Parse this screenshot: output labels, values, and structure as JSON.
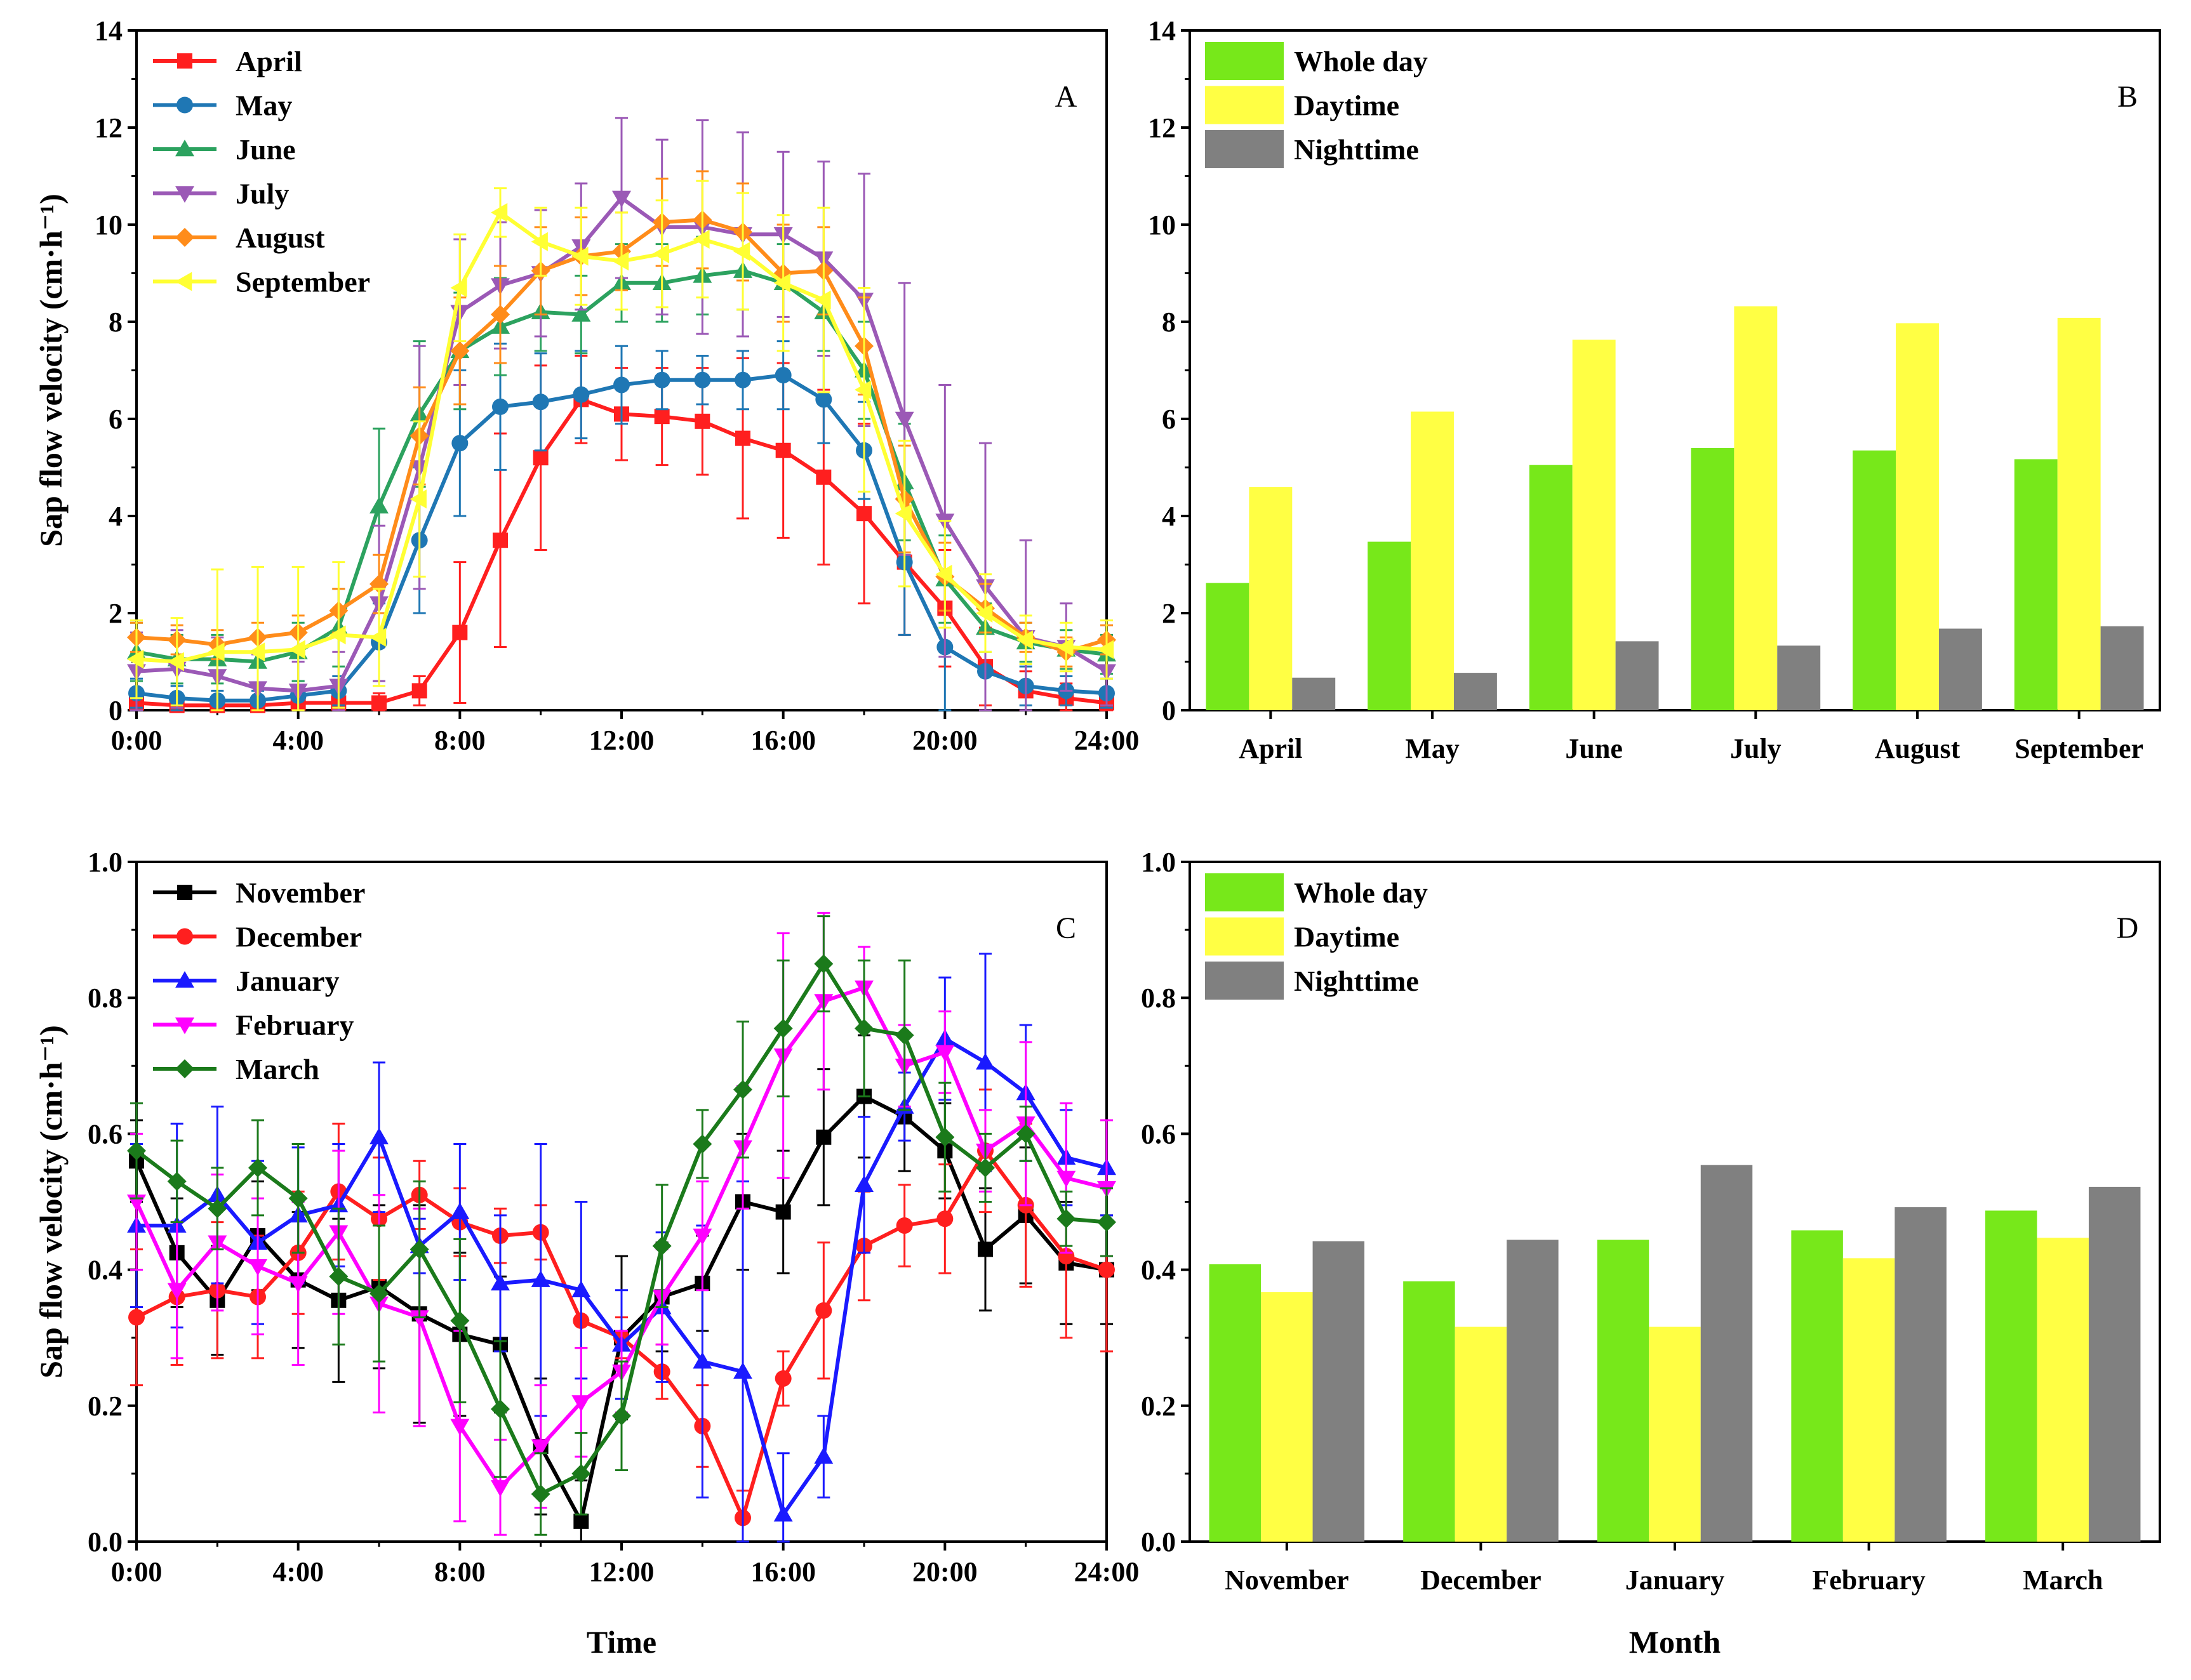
{
  "colors": {
    "April": "#ff1f1f",
    "May": "#1f77b4",
    "June": "#2ca25f",
    "July": "#9b59b6",
    "August": "#ff8c1a",
    "September": "#ffff33",
    "November": "#000000",
    "December": "#ff1f1f",
    "January": "#1a1aff",
    "February": "#ff00ff",
    "March": "#1b7a1b",
    "Whole day": "#77e81a",
    "Daytime": "#ffff44",
    "Nighttime": "#808080"
  },
  "chart_data": [
    {
      "panel": "A",
      "type": "line",
      "xlabel": "",
      "ylabel": "Sap flow velocity (cm·h⁻¹)",
      "ylim": [
        0,
        14
      ],
      "yticks": [
        "0",
        "2",
        "4",
        "6",
        "8",
        "10",
        "12",
        "14"
      ],
      "xlim": [
        0,
        24
      ],
      "xticks": [
        "0:00",
        "4:00",
        "8:00",
        "12:00",
        "16:00",
        "20:00",
        "24:00"
      ],
      "x": [
        0,
        1,
        2,
        3,
        4,
        5,
        6,
        7,
        8,
        9,
        10,
        11,
        12,
        13,
        14,
        15,
        16,
        17,
        18,
        19,
        20,
        21,
        22,
        23,
        24
      ],
      "series": [
        {
          "name": "April",
          "marker": "square",
          "values": [
            0.15,
            0.1,
            0.1,
            0.1,
            0.15,
            0.15,
            0.15,
            0.4,
            1.6,
            3.5,
            5.2,
            6.4,
            6.1,
            6.05,
            5.95,
            5.6,
            5.35,
            4.8,
            4.05,
            3.05,
            2.1,
            0.9,
            0.4,
            0.25,
            0.15
          ],
          "errors": [
            0.2,
            0.15,
            0.15,
            0.15,
            0.2,
            0.2,
            0.2,
            0.3,
            1.45,
            2.2,
            1.9,
            0.9,
            0.95,
            1.0,
            1.1,
            1.65,
            1.8,
            1.8,
            1.85,
            1.5,
            1.2,
            0.8,
            0.4,
            0.3,
            0.2
          ]
        },
        {
          "name": "May",
          "marker": "circle",
          "values": [
            0.35,
            0.25,
            0.2,
            0.2,
            0.3,
            0.4,
            1.4,
            3.5,
            5.5,
            6.25,
            6.35,
            6.5,
            6.7,
            6.8,
            6.8,
            6.8,
            6.9,
            6.4,
            5.35,
            3.05,
            1.3,
            0.8,
            0.5,
            0.4,
            0.35
          ],
          "errors": [
            0.3,
            0.25,
            0.2,
            0.2,
            0.3,
            0.3,
            0.8,
            1.5,
            1.5,
            1.3,
            1.0,
            0.9,
            0.8,
            0.6,
            0.5,
            0.6,
            0.7,
            0.9,
            1.0,
            1.5,
            1.3,
            0.8,
            0.4,
            0.3,
            0.3
          ]
        },
        {
          "name": "June",
          "marker": "triangle-up",
          "values": [
            1.2,
            1.05,
            1.05,
            1.0,
            1.2,
            1.7,
            4.2,
            6.1,
            7.4,
            7.9,
            8.2,
            8.15,
            8.8,
            8.8,
            8.95,
            9.05,
            8.8,
            8.2,
            7.0,
            4.7,
            2.7,
            1.7,
            1.4,
            1.25,
            1.15
          ],
          "errors": [
            0.6,
            0.5,
            0.5,
            0.5,
            0.6,
            0.8,
            1.6,
            1.5,
            1.2,
            1.0,
            0.8,
            0.8,
            0.8,
            0.8,
            0.8,
            0.8,
            0.8,
            0.8,
            1.0,
            1.2,
            0.9,
            0.5,
            0.4,
            0.4,
            0.4
          ]
        },
        {
          "name": "July",
          "marker": "triangle-down",
          "values": [
            0.8,
            0.85,
            0.7,
            0.45,
            0.4,
            0.5,
            2.2,
            5.0,
            8.2,
            8.75,
            9.0,
            9.55,
            10.55,
            9.95,
            9.95,
            9.8,
            9.8,
            9.3,
            8.45,
            6.0,
            3.9,
            2.55,
            1.5,
            1.3,
            0.8
          ],
          "errors": [
            0.8,
            0.8,
            0.8,
            0.7,
            0.6,
            0.7,
            1.6,
            2.5,
            1.5,
            1.3,
            1.3,
            1.3,
            1.65,
            1.8,
            2.2,
            2.1,
            1.7,
            2.0,
            2.6,
            2.8,
            2.8,
            2.95,
            2.0,
            0.9,
            0.7
          ]
        },
        {
          "name": "August",
          "marker": "diamond",
          "values": [
            1.5,
            1.45,
            1.35,
            1.5,
            1.6,
            2.05,
            2.6,
            5.65,
            7.4,
            8.15,
            9.05,
            9.35,
            9.45,
            10.05,
            10.1,
            9.85,
            9.0,
            9.05,
            7.5,
            4.35,
            2.75,
            2.1,
            1.5,
            1.2,
            1.45
          ],
          "errors": [
            0.3,
            0.3,
            0.3,
            0.3,
            0.35,
            0.45,
            0.6,
            1.0,
            1.1,
            1.0,
            0.9,
            0.8,
            0.8,
            0.9,
            1.0,
            1.0,
            1.0,
            0.9,
            1.0,
            1.1,
            0.7,
            0.5,
            0.3,
            0.3,
            0.3
          ]
        },
        {
          "name": "September",
          "marker": "triangle-left",
          "values": [
            1.05,
            1.0,
            1.2,
            1.2,
            1.25,
            1.55,
            1.5,
            4.35,
            8.7,
            10.25,
            9.65,
            9.35,
            9.25,
            9.4,
            9.7,
            9.45,
            8.8,
            8.45,
            6.6,
            4.05,
            2.8,
            2.0,
            1.45,
            1.3,
            1.25
          ],
          "errors": [
            0.8,
            0.9,
            1.7,
            1.75,
            1.7,
            1.5,
            1.0,
            1.6,
            1.1,
            0.5,
            0.7,
            1.0,
            1.0,
            1.1,
            1.2,
            1.2,
            1.4,
            1.9,
            2.1,
            1.5,
            1.1,
            0.8,
            0.5,
            0.5,
            0.6
          ]
        }
      ]
    },
    {
      "panel": "B",
      "type": "bar",
      "xlabel": "",
      "ylabel": "",
      "ylim": [
        0,
        14
      ],
      "yticks": [
        "0",
        "2",
        "4",
        "6",
        "8",
        "10",
        "12",
        "14"
      ],
      "categories": [
        "April",
        "May",
        "June",
        "July",
        "August",
        "September"
      ],
      "series": [
        {
          "name": "Whole day",
          "values": [
            2.62,
            3.47,
            5.05,
            5.4,
            5.35,
            5.17
          ]
        },
        {
          "name": "Daytime",
          "values": [
            4.6,
            6.15,
            7.63,
            8.32,
            7.97,
            8.08
          ]
        },
        {
          "name": "Nighttime",
          "values": [
            0.67,
            0.77,
            1.42,
            1.33,
            1.68,
            1.73
          ]
        }
      ]
    },
    {
      "panel": "C",
      "type": "line",
      "xlabel": "Time",
      "ylabel": "Sap flow velocity (cm·h⁻¹)",
      "ylim": [
        0,
        1.0
      ],
      "yticks": [
        "0.0",
        "0.2",
        "0.4",
        "0.6",
        "0.8",
        "1.0"
      ],
      "xlim": [
        0,
        24
      ],
      "xticks": [
        "0:00",
        "4:00",
        "8:00",
        "12:00",
        "16:00",
        "20:00",
        "24:00"
      ],
      "x": [
        0,
        1,
        2,
        3,
        4,
        5,
        6,
        7,
        8,
        9,
        10,
        11,
        12,
        13,
        14,
        15,
        16,
        17,
        18,
        19,
        20,
        21,
        22,
        23,
        24
      ],
      "series": [
        {
          "name": "November",
          "marker": "square",
          "values": [
            0.56,
            0.425,
            0.355,
            0.45,
            0.385,
            0.355,
            0.375,
            0.335,
            0.305,
            0.29,
            0.14,
            0.03,
            0.3,
            0.36,
            0.38,
            0.5,
            0.485,
            0.595,
            0.655,
            0.625,
            0.575,
            0.43,
            0.48,
            0.41,
            0.4
          ],
          "errors": [
            0.06,
            0.08,
            0.08,
            0.08,
            0.1,
            0.12,
            0.12,
            0.16,
            0.12,
            0.1,
            0.1,
            0.06,
            0.12,
            0.08,
            0.07,
            0.1,
            0.09,
            0.1,
            0.09,
            0.08,
            0.07,
            0.09,
            0.1,
            0.09,
            0.08
          ]
        },
        {
          "name": "December",
          "marker": "circle",
          "values": [
            0.33,
            0.36,
            0.37,
            0.36,
            0.425,
            0.515,
            0.475,
            0.51,
            0.47,
            0.45,
            0.455,
            0.325,
            0.3,
            0.25,
            0.17,
            0.035,
            0.24,
            0.34,
            0.435,
            0.465,
            0.475,
            0.575,
            0.495,
            0.42,
            0.4
          ],
          "errors": [
            0.1,
            0.1,
            0.1,
            0.09,
            0.09,
            0.1,
            0.09,
            0.05,
            0.05,
            0.04,
            0.04,
            0.04,
            0.03,
            0.04,
            0.06,
            0.04,
            0.04,
            0.1,
            0.08,
            0.06,
            0.08,
            0.09,
            0.12,
            0.12,
            0.12
          ]
        },
        {
          "name": "January",
          "marker": "triangle-up",
          "values": [
            0.465,
            0.465,
            0.51,
            0.44,
            0.48,
            0.495,
            0.595,
            0.435,
            0.485,
            0.38,
            0.385,
            0.37,
            0.29,
            0.345,
            0.265,
            0.25,
            0.04,
            0.125,
            0.525,
            0.64,
            0.74,
            0.705,
            0.66,
            0.565,
            0.55
          ],
          "errors": [
            0.12,
            0.15,
            0.13,
            0.12,
            0.1,
            0.09,
            0.11,
            0.04,
            0.1,
            0.1,
            0.2,
            0.13,
            0.08,
            0.11,
            0.2,
            0.28,
            0.09,
            0.06,
            0.1,
            0.05,
            0.09,
            0.16,
            0.1,
            0.07,
            0.07
          ]
        },
        {
          "name": "February",
          "marker": "triangle-down",
          "values": [
            0.5,
            0.37,
            0.44,
            0.405,
            0.38,
            0.455,
            0.35,
            0.33,
            0.17,
            0.08,
            0.14,
            0.205,
            0.25,
            0.36,
            0.45,
            0.58,
            0.715,
            0.795,
            0.815,
            0.7,
            0.72,
            0.575,
            0.615,
            0.535,
            0.52
          ],
          "errors": [
            0.1,
            0.1,
            0.1,
            0.1,
            0.12,
            0.12,
            0.16,
            0.16,
            0.14,
            0.07,
            0.09,
            0.08,
            0.06,
            0.07,
            0.08,
            0.09,
            0.18,
            0.13,
            0.06,
            0.06,
            0.06,
            0.06,
            0.12,
            0.11,
            0.1
          ]
        },
        {
          "name": "March",
          "marker": "diamond",
          "values": [
            0.575,
            0.53,
            0.49,
            0.55,
            0.505,
            0.39,
            0.365,
            0.43,
            0.325,
            0.195,
            0.07,
            0.1,
            0.185,
            0.435,
            0.585,
            0.665,
            0.755,
            0.85,
            0.755,
            0.745,
            0.595,
            0.55,
            0.6,
            0.475,
            0.47
          ],
          "errors": [
            0.07,
            0.06,
            0.06,
            0.07,
            0.08,
            0.1,
            0.1,
            0.1,
            0.12,
            0.1,
            0.06,
            0.06,
            0.08,
            0.09,
            0.05,
            0.1,
            0.1,
            0.07,
            0.1,
            0.11,
            0.08,
            0.05,
            0.04,
            0.04,
            0.05
          ]
        }
      ]
    },
    {
      "panel": "D",
      "type": "bar",
      "xlabel": "Month",
      "ylabel": "",
      "ylim": [
        0,
        1.0
      ],
      "yticks": [
        "0.0",
        "0.2",
        "0.4",
        "0.6",
        "0.8",
        "1.0"
      ],
      "categories": [
        "November",
        "December",
        "January",
        "February",
        "March"
      ],
      "series": [
        {
          "name": "Whole day",
          "values": [
            0.408,
            0.383,
            0.444,
            0.458,
            0.487
          ]
        },
        {
          "name": "Daytime",
          "values": [
            0.367,
            0.316,
            0.316,
            0.417,
            0.447
          ]
        },
        {
          "name": "Nighttime",
          "values": [
            0.442,
            0.444,
            0.554,
            0.492,
            0.522
          ]
        }
      ]
    }
  ]
}
